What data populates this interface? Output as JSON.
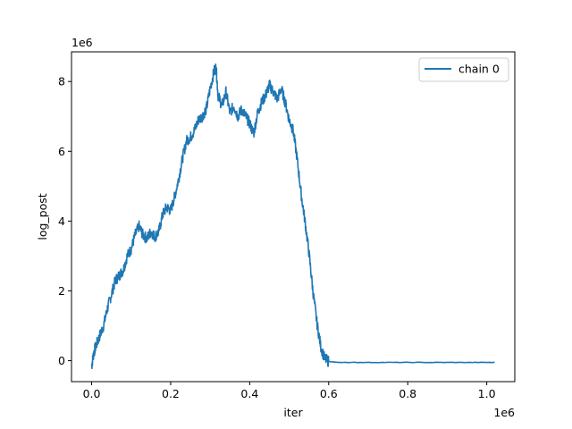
{
  "chart_data": {
    "type": "line",
    "title": "",
    "xlabel": "iter",
    "ylabel": "log_post",
    "x_offset_label": "1e6",
    "y_offset_label": "1e6",
    "xlim": [
      -0.051,
      1.071
    ],
    "ylim": [
      -0.6,
      8.85
    ],
    "x_ticks": [
      0.0,
      0.2,
      0.4,
      0.6,
      0.8,
      1.0
    ],
    "x_tick_labels": [
      "0.0",
      "0.2",
      "0.4",
      "0.6",
      "0.8",
      "1.0"
    ],
    "y_ticks": [
      0,
      2,
      4,
      6,
      8
    ],
    "y_tick_labels": [
      "0",
      "2",
      "4",
      "6",
      "8"
    ],
    "grid": false,
    "legend_position": "top-right",
    "series": [
      {
        "name": "chain 0",
        "color": "#1f77b4",
        "x": [
          0.0,
          0.005,
          0.01,
          0.02,
          0.03,
          0.04,
          0.05,
          0.06,
          0.07,
          0.08,
          0.09,
          0.1,
          0.11,
          0.12,
          0.13,
          0.14,
          0.15,
          0.16,
          0.17,
          0.18,
          0.19,
          0.2,
          0.21,
          0.22,
          0.23,
          0.24,
          0.25,
          0.26,
          0.27,
          0.28,
          0.29,
          0.3,
          0.31,
          0.315,
          0.32,
          0.33,
          0.34,
          0.35,
          0.36,
          0.37,
          0.38,
          0.39,
          0.4,
          0.41,
          0.42,
          0.43,
          0.44,
          0.45,
          0.46,
          0.47,
          0.48,
          0.49,
          0.5,
          0.51,
          0.52,
          0.53,
          0.54,
          0.55,
          0.56,
          0.57,
          0.58,
          0.59,
          0.6,
          0.62,
          0.65,
          0.7,
          0.8,
          0.9,
          1.0,
          1.02
        ],
        "y": [
          -0.15,
          0.2,
          0.4,
          0.7,
          1.0,
          1.5,
          1.9,
          2.3,
          2.45,
          2.6,
          3.0,
          3.2,
          3.6,
          3.85,
          3.6,
          3.5,
          3.7,
          3.55,
          3.7,
          4.2,
          4.4,
          4.3,
          4.7,
          5.2,
          5.8,
          6.3,
          6.4,
          6.6,
          6.9,
          7.0,
          7.2,
          7.8,
          8.3,
          8.4,
          7.6,
          7.3,
          7.7,
          7.1,
          7.3,
          7.0,
          7.2,
          7.0,
          6.8,
          6.5,
          7.1,
          7.4,
          7.6,
          7.9,
          7.7,
          7.5,
          7.8,
          7.4,
          6.9,
          6.6,
          5.8,
          4.8,
          4.0,
          3.1,
          2.0,
          1.1,
          0.4,
          0.05,
          -0.02,
          -0.05,
          -0.05,
          -0.05,
          -0.05,
          -0.05,
          -0.05,
          -0.05
        ]
      }
    ]
  }
}
